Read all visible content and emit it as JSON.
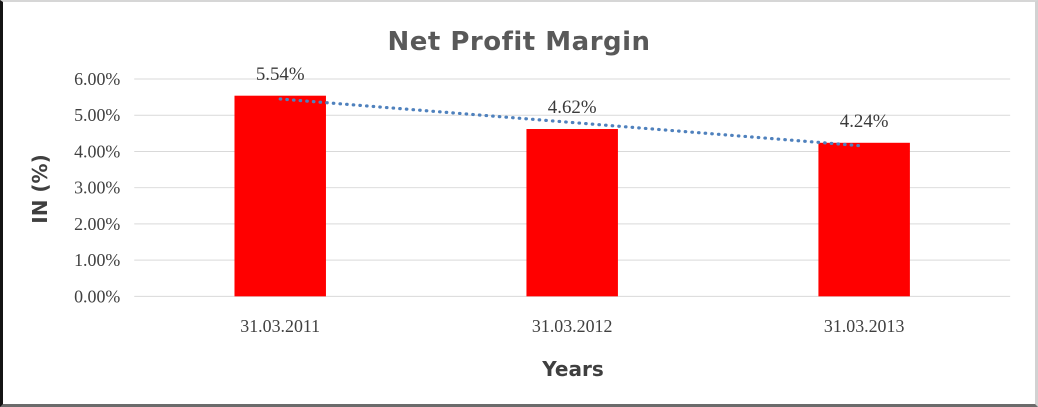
{
  "chart_data": {
    "type": "bar",
    "title": "Net Profit Margin",
    "xlabel": "Years",
    "ylabel": "IN (%)",
    "categories": [
      "31.03.2011",
      "31.03.2012",
      "31.03.2013"
    ],
    "values": [
      5.54,
      4.62,
      4.24
    ],
    "data_labels": [
      "5.54%",
      "4.62%",
      "4.24%"
    ],
    "y_tick_labels": [
      "0.00%",
      "1.00%",
      "2.00%",
      "3.00%",
      "4.00%",
      "5.00%",
      "6.00%"
    ],
    "y_tick_step": 1,
    "ylim": [
      0,
      6
    ],
    "grid": true,
    "legend": "none",
    "trendline": {
      "type": "linear",
      "style": "dotted"
    },
    "colors": {
      "bar": "#FF0000",
      "trendline": "#4F81BD",
      "gridline": "#D9D9D9",
      "title_text": "#595959",
      "axis_text": "#404040"
    }
  }
}
